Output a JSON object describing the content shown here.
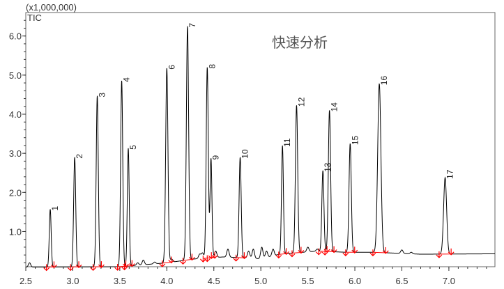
{
  "chart_data": {
    "type": "line",
    "title": "快速分析",
    "trace_label": "TIC",
    "y_multiplier_label": "(x1,000,000)",
    "xlabel": "",
    "ylabel": "",
    "xlim": [
      2.5,
      7.49
    ],
    "ylim": [
      0.1,
      6.6
    ],
    "x_ticks": [
      "2.5",
      "3.0",
      "3.5",
      "4.0",
      "4.5",
      "5.0",
      "5.5",
      "6.0",
      "6.5",
      "7.0"
    ],
    "y_ticks": [
      "1.0",
      "2.0",
      "3.0",
      "4.0",
      "5.0",
      "6.0"
    ],
    "grid": false,
    "line_color": "#000000",
    "marker_color": "#ff0000",
    "peaks": [
      {
        "label": "1",
        "rt": 2.76,
        "height": 1.57,
        "width": 0.01
      },
      {
        "label": "2",
        "rt": 3.02,
        "height": 2.9,
        "width": 0.011
      },
      {
        "label": "3",
        "rt": 3.26,
        "height": 4.47,
        "width": 0.011
      },
      {
        "label": "4",
        "rt": 3.52,
        "height": 4.86,
        "width": 0.011
      },
      {
        "label": "5",
        "rt": 3.59,
        "height": 3.13,
        "width": 0.01
      },
      {
        "label": "6",
        "rt": 4.0,
        "height": 5.18,
        "width": 0.012
      },
      {
        "label": "7",
        "rt": 4.22,
        "height": 6.25,
        "width": 0.012
      },
      {
        "label": "8",
        "rt": 4.43,
        "height": 5.2,
        "width": 0.011
      },
      {
        "label": "9",
        "rt": 4.47,
        "height": 2.87,
        "width": 0.01
      },
      {
        "label": "10",
        "rt": 4.78,
        "height": 2.9,
        "width": 0.011
      },
      {
        "label": "11",
        "rt": 5.23,
        "height": 3.2,
        "width": 0.01
      },
      {
        "label": "12",
        "rt": 5.38,
        "height": 4.23,
        "width": 0.012
      },
      {
        "label": "13",
        "rt": 5.66,
        "height": 2.56,
        "width": 0.011
      },
      {
        "label": "14",
        "rt": 5.73,
        "height": 4.1,
        "width": 0.012
      },
      {
        "label": "15",
        "rt": 5.95,
        "height": 3.25,
        "width": 0.012
      },
      {
        "label": "16",
        "rt": 6.26,
        "height": 4.78,
        "width": 0.017
      },
      {
        "label": "17",
        "rt": 6.96,
        "height": 2.38,
        "width": 0.016
      }
    ],
    "minor_peaks": [
      {
        "rt": 2.54,
        "height": 0.2
      },
      {
        "rt": 3.69,
        "height": 0.2
      },
      {
        "rt": 3.75,
        "height": 0.27
      },
      {
        "rt": 3.87,
        "height": 0.22
      },
      {
        "rt": 4.05,
        "height": 0.3
      },
      {
        "rt": 4.35,
        "height": 0.42
      },
      {
        "rt": 4.38,
        "height": 0.45
      },
      {
        "rt": 4.52,
        "height": 0.5
      },
      {
        "rt": 4.65,
        "height": 0.55
      },
      {
        "rt": 4.87,
        "height": 0.5
      },
      {
        "rt": 4.92,
        "height": 0.55
      },
      {
        "rt": 5.01,
        "height": 0.6
      },
      {
        "rt": 5.06,
        "height": 0.5
      },
      {
        "rt": 5.13,
        "height": 0.55
      },
      {
        "rt": 5.5,
        "height": 0.6
      },
      {
        "rt": 5.6,
        "height": 0.55
      },
      {
        "rt": 6.5,
        "height": 0.53
      },
      {
        "rt": 6.6,
        "height": 0.47
      }
    ],
    "baseline": [
      [
        2.5,
        0.09
      ],
      [
        3.5,
        0.1
      ],
      [
        4.0,
        0.2
      ],
      [
        4.3,
        0.3
      ],
      [
        4.6,
        0.35
      ],
      [
        4.9,
        0.32
      ],
      [
        5.0,
        0.3
      ],
      [
        5.2,
        0.42
      ],
      [
        5.6,
        0.5
      ],
      [
        5.9,
        0.47
      ],
      [
        6.2,
        0.47
      ],
      [
        6.7,
        0.42
      ],
      [
        7.49,
        0.43
      ]
    ]
  }
}
